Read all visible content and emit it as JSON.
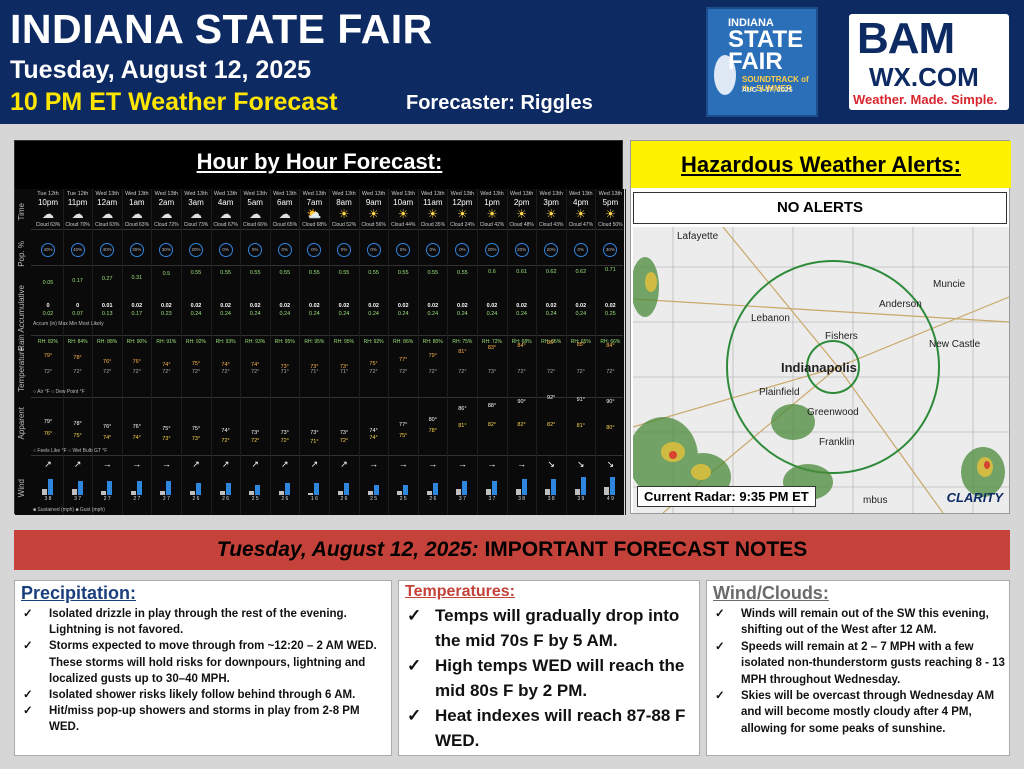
{
  "header": {
    "title": "INDIANA STATE FAIR",
    "date": "Tuesday, August 12, 2025",
    "subtitle": "10 PM ET Weather Forecast",
    "forecaster": "Forecaster: Riggles",
    "fair_logo": {
      "line1": "INDIANA",
      "line2": "STATE FAIR",
      "line3": "SOUNDTRACK of the SUMMER",
      "line4": "AUG 1-17, 2025"
    },
    "bam_logo": {
      "line1": "BAM",
      "line2": "WX.COM",
      "line3": "Weather. Made. Simple."
    }
  },
  "hourly": {
    "title": "Hour by Hour Forecast:",
    "row_labels": {
      "time": "Time",
      "pop": "Pop. %",
      "rain": "Rain Accumulative",
      "temp": "Temperature",
      "apparent": "Apparent",
      "wind": "Wind"
    },
    "days": [
      "Tue 12th",
      "Tue 12th",
      "Wed 13th",
      "Wed 13th",
      "Wed 13th",
      "Wed 13th",
      "Wed 13th",
      "Wed 13th",
      "Wed 13th",
      "Wed 13th",
      "Wed 13th",
      "Wed 13th",
      "Wed 13th",
      "Wed 13th",
      "Wed 13th",
      "Wed 13th",
      "Wed 13th",
      "Wed 13th",
      "Wed 13th",
      "Wed 13th"
    ],
    "hours": [
      "10pm",
      "11pm",
      "12am",
      "1am",
      "2am",
      "3am",
      "4am",
      "5am",
      "6am",
      "7am",
      "8am",
      "9am",
      "10am",
      "11am",
      "12pm",
      "1pm",
      "2pm",
      "3pm",
      "4pm",
      "5pm"
    ],
    "sky_icons": [
      "☁",
      "☁",
      "☁",
      "☁",
      "☁",
      "☁",
      "☁",
      "☁",
      "☁",
      "⛅",
      "☀",
      "☀",
      "☀",
      "☀",
      "☀",
      "☀",
      "☀",
      "☀",
      "☀",
      "☀"
    ],
    "cloud": [
      "Cloud 63%",
      "Cloud 70%",
      "Cloud 63%",
      "Cloud 63%",
      "Cloud 72%",
      "Cloud 73%",
      "Cloud 67%",
      "Cloud 66%",
      "Cloud 65%",
      "Cloud 68%",
      "Cloud 52%",
      "Cloud 56%",
      "Cloud 44%",
      "Cloud 35%",
      "Cloud 24%",
      "Cloud 42%",
      "Cloud 48%",
      "Cloud 43%",
      "Cloud 47%",
      "Cloud 50%"
    ],
    "pop": [
      "40%",
      "40%",
      "40%",
      "30%",
      "30%",
      "20%",
      "0%",
      "0%",
      "0%",
      "0%",
      "0%",
      "0%",
      "0%",
      "0%",
      "0%",
      "20%",
      "20%",
      "20%",
      "0%",
      "30%"
    ],
    "rain_top": [
      "0.05",
      "0.17",
      "0.27",
      "0.31",
      "0.5",
      "0.55",
      "0.55",
      "0.55",
      "0.55",
      "0.55",
      "0.55",
      "0.55",
      "0.55",
      "0.55",
      "0.55",
      "0.6",
      "0.61",
      "0.62",
      "0.62",
      "0.71"
    ],
    "accum": [
      "0",
      "0",
      "0.01",
      "0.02",
      "0.02",
      "0.02",
      "0.02",
      "0.02",
      "0.02",
      "0.02",
      "0.02",
      "0.02",
      "0.02",
      "0.02",
      "0.02",
      "0.02",
      "0.02",
      "0.02",
      "0.02",
      "0.02"
    ],
    "accum2": [
      "0.02",
      "0.07",
      "0.13",
      "0.17",
      "0.23",
      "0.24",
      "0.24",
      "0.24",
      "0.24",
      "0.24",
      "0.24",
      "0.24",
      "0.24",
      "0.24",
      "0.24",
      "0.24",
      "0.24",
      "0.24",
      "0.24",
      "0.25"
    ],
    "accum_legend": "Accum (in)  Max  Min  Most Likely",
    "rh": [
      "RH: 82%",
      "RH: 84%",
      "RH: 88%",
      "RH: 90%",
      "RH: 91%",
      "RH: 92%",
      "RH: 93%",
      "RH: 93%",
      "RH: 95%",
      "RH: 95%",
      "RH: 95%",
      "RH: 92%",
      "RH: 86%",
      "RH: 80%",
      "RH: 75%",
      "RH: 72%",
      "RH: 68%",
      "RH: 65%",
      "RH: 65%",
      "RH: 66%"
    ],
    "air": [
      "79°",
      "78°",
      "76°",
      "76°",
      "74°",
      "75°",
      "74°",
      "74°",
      "73°",
      "73°",
      "73°",
      "75°",
      "77°",
      "79°",
      "81°",
      "83°",
      "84°",
      "86°",
      "85°",
      "84°"
    ],
    "dew": [
      "72°",
      "72°",
      "72°",
      "72°",
      "72°",
      "72°",
      "72°",
      "72°",
      "71°",
      "71°",
      "71°",
      "72°",
      "72°",
      "72°",
      "72°",
      "73°",
      "72°",
      "72°",
      "72°",
      "72°"
    ],
    "temp_legend": "○ Air °F   ○ Dew Point °F",
    "feels": [
      "79°",
      "78°",
      "76°",
      "76°",
      "75°",
      "75°",
      "74°",
      "73°",
      "73°",
      "73°",
      "73°",
      "74°",
      "77°",
      "80°",
      "86°",
      "88°",
      "90°",
      "92°",
      "91°",
      "90°"
    ],
    "wbgt": [
      "76°",
      "75°",
      "74°",
      "74°",
      "73°",
      "73°",
      "72°",
      "72°",
      "72°",
      "71°",
      "72°",
      "74°",
      "75°",
      "78°",
      "81°",
      "82°",
      "82°",
      "82°",
      "81°",
      "80°"
    ],
    "apparent_legend": "○ Feels Like °F   ○ Wet Bulb GT °F",
    "wind_arrows": [
      "↗",
      "↗",
      "→",
      "→",
      "→",
      "↗",
      "↗",
      "↗",
      "↗",
      "↗",
      "↗",
      "→",
      "→",
      "→",
      "→",
      "→",
      "→",
      "↘",
      "↘",
      "↘"
    ],
    "wind_sus": [
      3,
      3,
      2,
      2,
      2,
      2,
      2,
      2,
      2,
      1,
      2,
      2,
      2,
      2,
      3,
      3,
      3,
      3,
      3,
      4
    ],
    "wind_gust": [
      8,
      7,
      7,
      7,
      7,
      6,
      6,
      5,
      6,
      6,
      6,
      5,
      5,
      6,
      7,
      7,
      8,
      8,
      9,
      9
    ],
    "wind_legend": "■ Sustained (mph)   ■ Gust (mph)"
  },
  "alerts": {
    "title": "Hazardous Weather Alerts:",
    "status": "NO ALERTS",
    "radar_caption": "Current Radar: 9:35 PM ET",
    "radar_brand": "CLARITY",
    "cities": [
      "Lafayette",
      "Muncie",
      "Anderson",
      "Lebanon",
      "Fishers",
      "New Castle",
      "Indianapolis",
      "Plainfield",
      "Greenwood",
      "Franklin",
      "mbus"
    ]
  },
  "notes": {
    "banner_date": "Tuesday, August 12, 2025:",
    "banner_text": " IMPORTANT FORECAST NOTES",
    "precip": {
      "heading": "Precipitation:",
      "items": [
        "Isolated drizzle in play through the rest of the evening. Lightning is not favored.",
        "Storms expected to move through from ~12:20 – 2 AM WED. These storms will hold risks for downpours, lightning and localized gusts up to 30–40 MPH.",
        "Isolated shower risks likely follow behind through 6 AM.",
        "Hit/miss pop-up showers and storms in play from 2-8 PM WED."
      ]
    },
    "temps": {
      "heading": "Temperatures:",
      "items": [
        "Temps will gradually drop into the mid 70s F by 5 AM.",
        "High temps WED will reach the mid 80s F by 2 PM.",
        "Heat indexes will reach 87-88 F WED."
      ]
    },
    "wind": {
      "heading": "Wind/Clouds:",
      "items": [
        "Winds will remain out of the SW this evening, shifting out of the West after 12 AM.",
        "Speeds will remain at 2 – 7  MPH with a few isolated non-thunderstorm gusts reaching 8 - 13 MPH throughout Wednesday.",
        "Skies will be overcast through Wednesday AM and will become mostly cloudy after 4 PM, allowing for some peaks of sunshine."
      ]
    },
    "check": "✓"
  },
  "colors": {
    "header_bg": "#0d2a63",
    "yellow": "#ffe600",
    "banner_red": "#c5423a",
    "alert_yellow": "#fff200",
    "rain_green": "#9be37b",
    "gust_blue": "#2e86de"
  }
}
